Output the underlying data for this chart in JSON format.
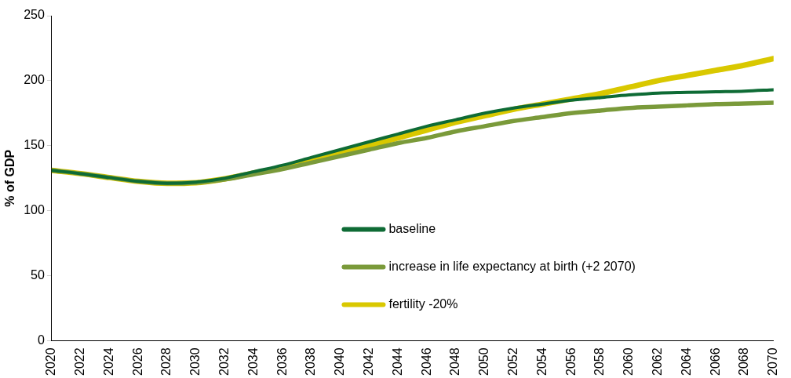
{
  "chart_data": {
    "type": "line",
    "ylabel": "% of GDP",
    "x": [
      2020,
      2022,
      2024,
      2026,
      2028,
      2030,
      2032,
      2034,
      2036,
      2038,
      2040,
      2042,
      2044,
      2046,
      2048,
      2050,
      2052,
      2054,
      2056,
      2058,
      2060,
      2062,
      2064,
      2066,
      2068,
      2070
    ],
    "series": [
      {
        "name": "baseline",
        "color": "#0e6b35",
        "values": [
          131,
          128.5,
          125.5,
          122.5,
          121,
          122,
          125,
          130,
          135,
          141,
          147,
          153,
          159,
          165,
          170,
          175,
          179,
          182,
          185,
          187,
          189,
          190.5,
          191,
          191.5,
          192,
          193
        ]
      },
      {
        "name": "increase in life expectancy at birth (+2 2070)",
        "color": "#7a9a3a",
        "values": [
          131,
          128.5,
          125.5,
          122.5,
          121,
          121.5,
          124,
          128,
          132,
          137,
          142,
          147,
          152,
          156,
          161,
          165,
          169,
          172,
          175,
          177,
          179,
          180,
          181,
          182,
          182.5,
          183
        ]
      },
      {
        "name": "fertility -20%",
        "color": "#d9c800",
        "values": [
          131,
          128.5,
          125.5,
          122.5,
          121,
          121.5,
          124.5,
          129,
          133,
          139,
          144.5,
          150,
          156,
          162,
          168,
          173,
          178,
          182,
          186,
          190,
          195,
          200,
          204,
          208,
          212,
          217
        ]
      }
    ],
    "xlim": [
      2020,
      2070
    ],
    "xticks": [
      2020,
      2022,
      2024,
      2026,
      2028,
      2030,
      2032,
      2034,
      2036,
      2038,
      2040,
      2042,
      2044,
      2046,
      2048,
      2050,
      2052,
      2054,
      2056,
      2058,
      2060,
      2062,
      2064,
      2066,
      2068,
      2070
    ],
    "ylim": [
      0,
      250
    ],
    "yticks": [
      0,
      50,
      100,
      150,
      200,
      250
    ],
    "grid": false,
    "legend": "bottom",
    "marker": "none",
    "line_style": "solid"
  }
}
